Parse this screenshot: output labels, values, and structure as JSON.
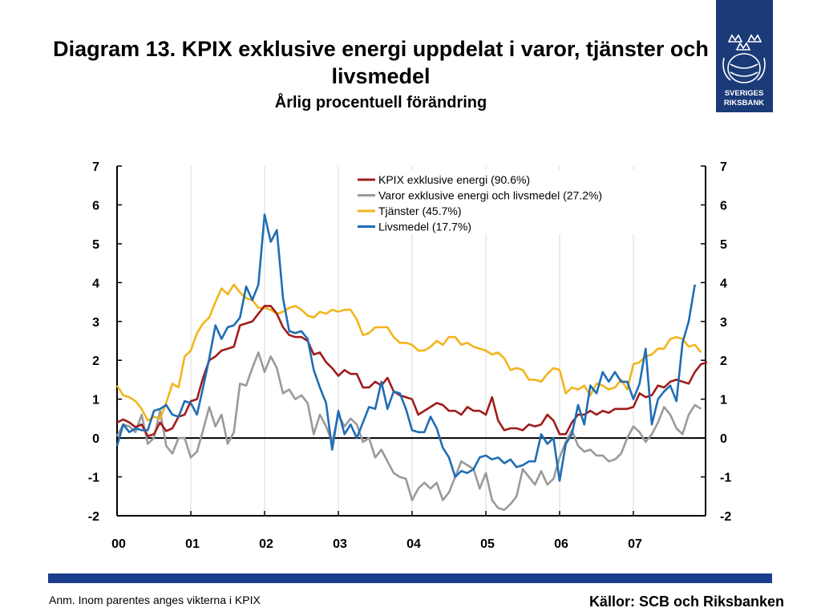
{
  "title": "Diagram 13. KPIX exklusive energi uppdelat i varor, tjänster och livsmedel",
  "subtitle": "Årlig procentuell förändring",
  "logo": {
    "line1": "SVERIGES",
    "line2": "RIKSBANK"
  },
  "note": "Anm. Inom parentes anges vikterna i KPIX",
  "sources": "Källor: SCB och Riksbanken",
  "colors": {
    "brand": "#1b3a78",
    "footer_bar": "#1a3c8c"
  },
  "chart_data": {
    "type": "line",
    "x_tick_labels": [
      "00",
      "01",
      "02",
      "03",
      "04",
      "05",
      "06",
      "07"
    ],
    "x_start_year": 2000,
    "ylim": [
      -2,
      7
    ],
    "y_ticks": [
      -2,
      -1,
      0,
      1,
      2,
      3,
      4,
      5,
      6,
      7
    ],
    "y_tick_labels": [
      "-2",
      "-1",
      "0",
      "1",
      "2",
      "3",
      "4",
      "5",
      "6",
      "7"
    ],
    "legend_position": "top-right",
    "series": [
      {
        "name": "KPIX exklusive energi (90.6%)",
        "color": "#a01c1c",
        "values": [
          0.4,
          0.48,
          0.4,
          0.28,
          0.35,
          0.05,
          0.1,
          0.4,
          0.18,
          0.25,
          0.55,
          0.6,
          0.95,
          1.0,
          1.55,
          2.0,
          2.1,
          2.25,
          2.3,
          2.35,
          2.9,
          2.95,
          3.0,
          3.2,
          3.4,
          3.4,
          3.2,
          2.85,
          2.65,
          2.6,
          2.6,
          2.5,
          2.15,
          2.2,
          1.95,
          1.8,
          1.6,
          1.75,
          1.65,
          1.65,
          1.3,
          1.3,
          1.45,
          1.35,
          1.55,
          1.2,
          1.1,
          1.05,
          1.0,
          0.6,
          0.7,
          0.8,
          0.9,
          0.85,
          0.7,
          0.7,
          0.6,
          0.8,
          0.7,
          0.7,
          0.6,
          1.05,
          0.45,
          0.2,
          0.25,
          0.25,
          0.2,
          0.35,
          0.3,
          0.35,
          0.6,
          0.45,
          0.1,
          0.1,
          0.4,
          0.6,
          0.6,
          0.7,
          0.6,
          0.7,
          0.65,
          0.75,
          0.75,
          0.75,
          0.8,
          1.15,
          1.05,
          1.1,
          1.35,
          1.3,
          1.45,
          1.5,
          1.45,
          1.4,
          1.7,
          1.9,
          1.95
        ]
      },
      {
        "name": "Varor exklusive energi och livsmedel (27.2%)",
        "color": "#9a9a9a",
        "values": [
          0.05,
          0.35,
          0.3,
          0.15,
          0.6,
          -0.15,
          0.0,
          0.7,
          -0.2,
          -0.4,
          0.0,
          0.0,
          -0.5,
          -0.35,
          0.2,
          0.8,
          0.3,
          0.6,
          -0.15,
          0.15,
          1.4,
          1.35,
          1.8,
          2.2,
          1.7,
          2.1,
          1.8,
          1.15,
          1.25,
          1.0,
          1.1,
          0.9,
          0.1,
          0.6,
          0.3,
          -0.1,
          0.6,
          0.3,
          0.5,
          0.35,
          -0.1,
          0.0,
          -0.5,
          -0.3,
          -0.6,
          -0.9,
          -1.0,
          -1.05,
          -1.6,
          -1.3,
          -1.15,
          -1.3,
          -1.15,
          -1.6,
          -1.4,
          -1.0,
          -0.6,
          -0.7,
          -0.8,
          -1.3,
          -0.9,
          -1.6,
          -1.8,
          -1.85,
          -1.7,
          -1.5,
          -0.8,
          -1.0,
          -1.2,
          -0.85,
          -1.2,
          -1.05,
          -0.5,
          -0.1,
          0.2,
          -0.2,
          -0.35,
          -0.3,
          -0.45,
          -0.45,
          -0.6,
          -0.55,
          -0.4,
          0.0,
          0.3,
          0.15,
          -0.1,
          0.1,
          0.4,
          0.8,
          0.6,
          0.25,
          0.1,
          0.6,
          0.85,
          0.75
        ]
      },
      {
        "name": "Tjänster (45.7%)",
        "color": "#f2b51c",
        "values": [
          1.35,
          1.1,
          1.05,
          0.95,
          0.75,
          0.45,
          0.55,
          0.5,
          0.9,
          1.4,
          1.3,
          2.1,
          2.25,
          2.7,
          2.95,
          3.1,
          3.5,
          3.85,
          3.7,
          3.95,
          3.75,
          3.6,
          3.55,
          3.35,
          3.35,
          3.3,
          3.2,
          3.25,
          3.35,
          3.4,
          3.3,
          3.15,
          3.1,
          3.25,
          3.2,
          3.3,
          3.25,
          3.3,
          3.3,
          3.05,
          2.65,
          2.7,
          2.85,
          2.85,
          2.85,
          2.6,
          2.45,
          2.45,
          2.4,
          2.25,
          2.25,
          2.35,
          2.5,
          2.4,
          2.6,
          2.6,
          2.4,
          2.45,
          2.35,
          2.3,
          2.25,
          2.15,
          2.2,
          2.05,
          1.75,
          1.8,
          1.75,
          1.5,
          1.5,
          1.45,
          1.65,
          1.8,
          1.75,
          1.15,
          1.3,
          1.25,
          1.35,
          1.1,
          1.4,
          1.35,
          1.25,
          1.3,
          1.5,
          1.25,
          1.9,
          1.95,
          2.1,
          2.15,
          2.3,
          2.3,
          2.55,
          2.6,
          2.55,
          2.35,
          2.4,
          2.2
        ]
      },
      {
        "name": "Livsmedel (17.7%)",
        "color": "#1f6db5",
        "values": [
          -0.2,
          0.35,
          0.15,
          0.25,
          0.2,
          0.2,
          0.7,
          0.75,
          0.85,
          0.6,
          0.55,
          0.95,
          0.9,
          0.6,
          1.3,
          2.05,
          2.9,
          2.55,
          2.85,
          2.9,
          3.1,
          3.9,
          3.55,
          3.95,
          5.75,
          5.05,
          5.35,
          3.6,
          2.75,
          2.7,
          2.75,
          2.55,
          1.75,
          1.3,
          0.9,
          -0.3,
          0.7,
          0.1,
          0.35,
          0.0,
          0.4,
          0.8,
          0.75,
          1.45,
          0.75,
          1.2,
          1.15,
          0.75,
          0.2,
          0.15,
          0.15,
          0.55,
          0.25,
          -0.25,
          -0.5,
          -1.0,
          -0.85,
          -0.9,
          -0.8,
          -0.5,
          -0.45,
          -0.55,
          -0.5,
          -0.65,
          -0.55,
          -0.75,
          -0.7,
          -0.6,
          -0.6,
          0.1,
          -0.15,
          0.0,
          -1.1,
          -0.15,
          0.1,
          0.85,
          0.35,
          1.35,
          1.15,
          1.7,
          1.45,
          1.7,
          1.45,
          1.45,
          1.0,
          1.4,
          2.3,
          0.35,
          1.0,
          1.2,
          1.35,
          0.95,
          2.45,
          3.0,
          3.95
        ]
      }
    ]
  }
}
